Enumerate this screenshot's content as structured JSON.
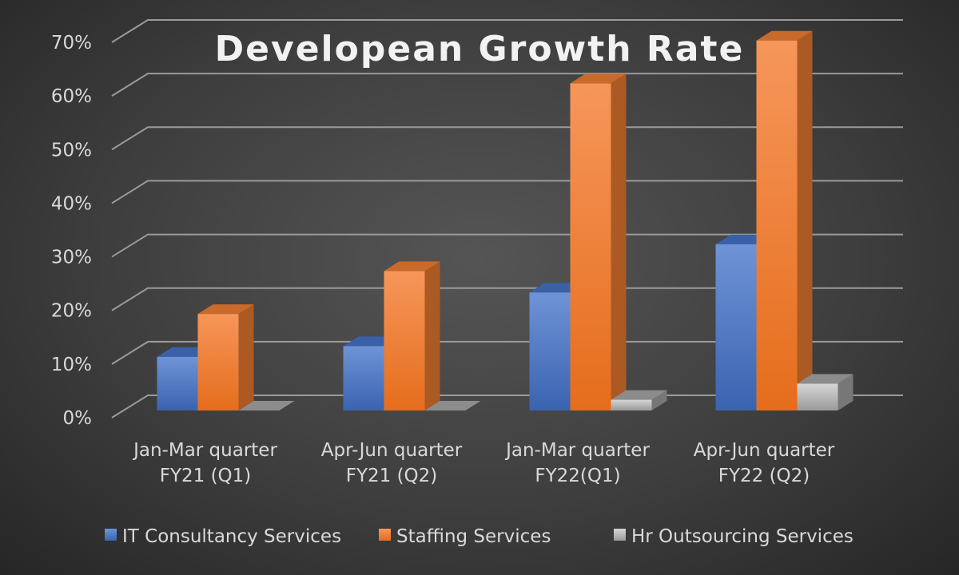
{
  "chart_data": {
    "type": "bar",
    "style": "3d-clustered-column",
    "title": "Developean Growth Rate",
    "xlabel": "",
    "ylabel": "",
    "ylim": [
      0,
      0.7
    ],
    "y_ticks": [
      0,
      0.1,
      0.2,
      0.3,
      0.4,
      0.5,
      0.6,
      0.7
    ],
    "y_tick_labels": [
      "0%",
      "10%",
      "20%",
      "30%",
      "40%",
      "50%",
      "60%",
      "70%"
    ],
    "grid": true,
    "legend_position": "bottom",
    "categories": [
      [
        "Jan-Mar quarter",
        "FY21 (Q1)"
      ],
      [
        "Apr-Jun quarter",
        "FY21 (Q2)"
      ],
      [
        "Jan-Mar quarter",
        "FY22(Q1)"
      ],
      [
        "Apr-Jun quarter",
        "FY22 (Q2)"
      ]
    ],
    "series": [
      {
        "name": "IT Consultancy Services",
        "color": "#4472c4",
        "values": [
          0.1,
          0.12,
          0.22,
          0.31
        ]
      },
      {
        "name": "Staffing Services",
        "color": "#ed7d31",
        "values": [
          0.18,
          0.26,
          0.61,
          0.69
        ]
      },
      {
        "name": "Hr Outsourcing Services",
        "color": "#a5a5a5",
        "values": [
          0.0,
          0.0,
          0.02,
          0.05
        ]
      }
    ]
  }
}
